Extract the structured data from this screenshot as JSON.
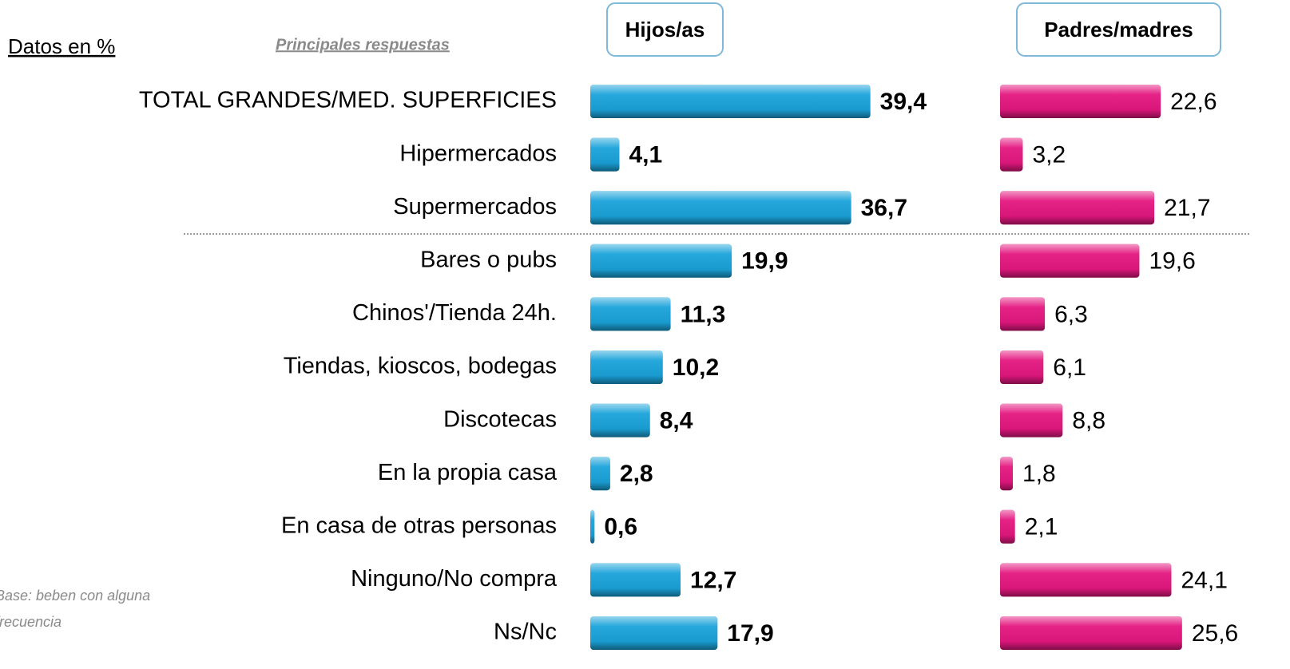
{
  "chart_data": {
    "type": "bar",
    "orientation": "horizontal",
    "unit_label": "Datos en %",
    "subtitle": "Principales respuestas",
    "note": "Base: beben con alguna frecuencia",
    "categories": [
      "TOTAL GRANDES/MED. SUPERFICIES",
      "Hipermercados",
      "Supermercados",
      "Bares o pubs",
      "Chinos'/Tienda 24h.",
      "Tiendas, kioscos, bodegas",
      "Discotecas",
      "En la propia casa",
      "En casa de otras personas",
      "Ninguno/No compra",
      "Ns/Nc"
    ],
    "xlim": [
      0,
      40
    ],
    "series": [
      {
        "name": "Hijos/as",
        "color": "#1ba3da",
        "values": [
          39.4,
          4.1,
          36.7,
          19.9,
          11.3,
          10.2,
          8.4,
          2.8,
          0.6,
          12.7,
          17.9
        ],
        "value_labels": [
          "39,4",
          "4,1",
          "36,7",
          "19,9",
          "11,3",
          "10,2",
          "8,4",
          "2,8",
          "0,6",
          "12,7",
          "17,9"
        ]
      },
      {
        "name": "Padres/madres",
        "color": "#e4177f",
        "values": [
          22.6,
          3.2,
          21.7,
          19.6,
          6.3,
          6.1,
          8.8,
          1.8,
          2.1,
          24.1,
          25.6
        ],
        "value_labels": [
          "22,6",
          "3,2",
          "21,7",
          "19,6",
          "6,3",
          "6,1",
          "8,8",
          "1,8",
          "2,1",
          "24,1",
          "25,6"
        ]
      }
    ]
  }
}
